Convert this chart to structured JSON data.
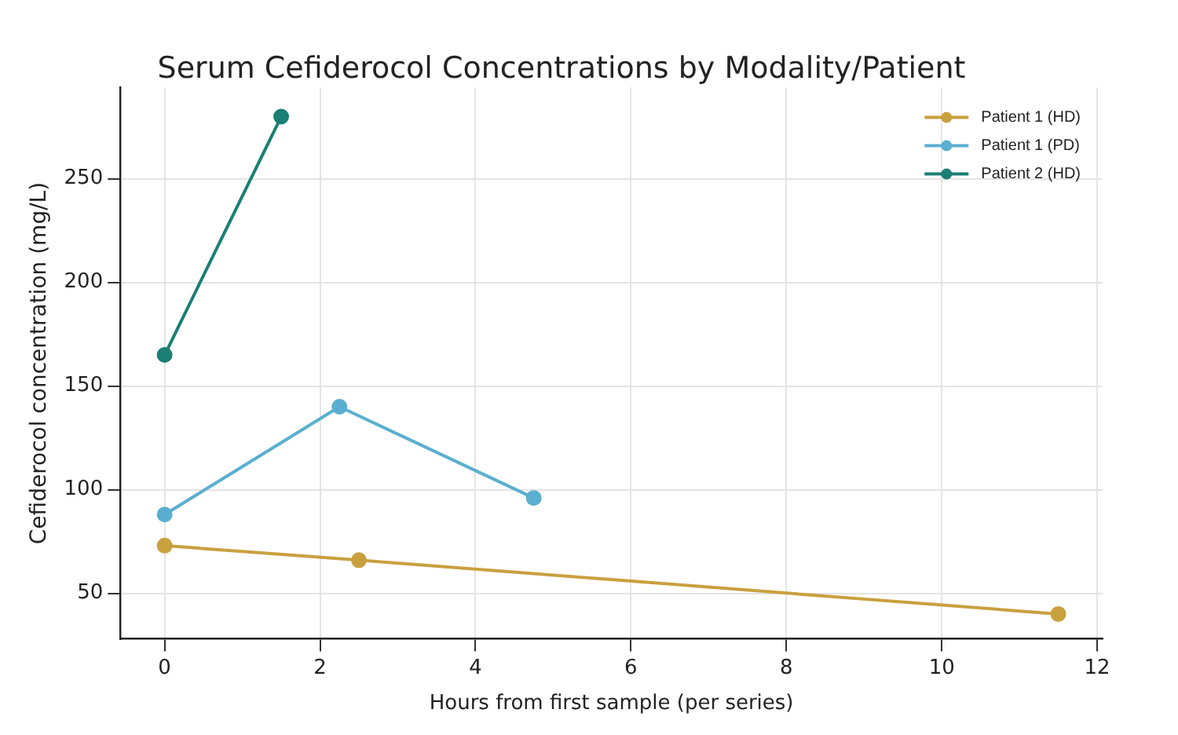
{
  "chart_data": {
    "type": "line",
    "title": "Serum Cefiderocol Concentrations by Modality/Patient",
    "xlabel": "Hours from first sample (per series)",
    "ylabel": "Cefiderocol concentration (mg/L)",
    "series": [
      {
        "name": "Patient 1 (HD)",
        "color": "#c9a03e",
        "x": [
          0,
          2.5,
          11.5
        ],
        "values": [
          73,
          66,
          40
        ]
      },
      {
        "name": "Patient 1 (PD)",
        "color": "#5aafd0",
        "x": [
          0,
          2.25,
          4.75
        ],
        "values": [
          88,
          140,
          96
        ]
      },
      {
        "name": "Patient 2 (HD)",
        "color": "#1a7f74",
        "x": [
          0,
          1.5
        ],
        "values": [
          165,
          280
        ]
      }
    ],
    "xlim": [
      -0.57,
      12.07
    ],
    "xticks": [
      0,
      2,
      4,
      6,
      8,
      10,
      12
    ],
    "ylim": [
      28,
      294
    ],
    "yticks": [
      50,
      100,
      150,
      200,
      250
    ],
    "grid": true,
    "legend": "top right",
    "marker": "circle",
    "line_style": "solid"
  }
}
